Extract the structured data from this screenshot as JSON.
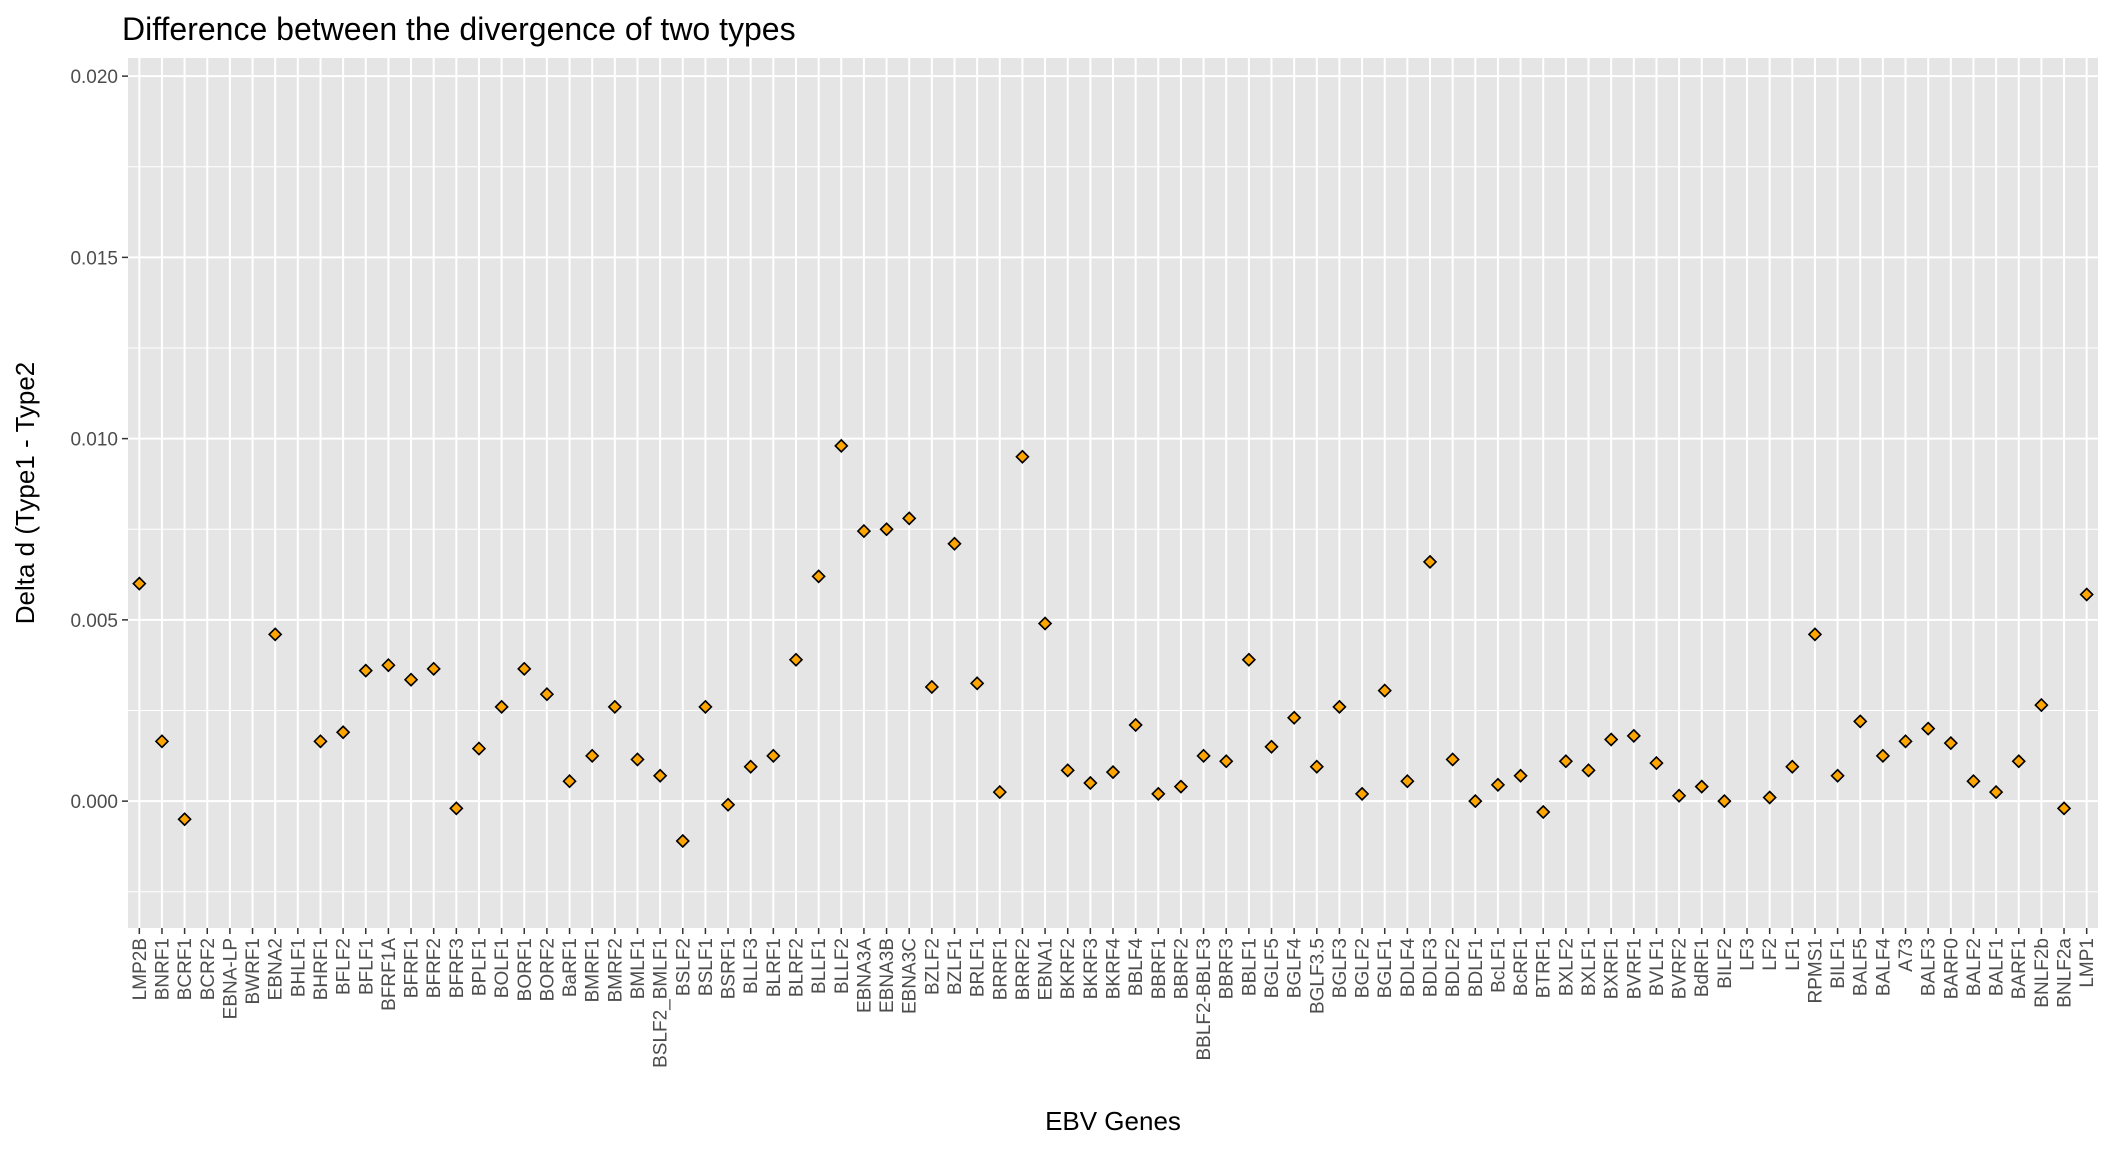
{
  "chart_data": {
    "type": "scatter",
    "title": "Difference between the divergence of two types",
    "xlabel": "EBV Genes",
    "ylabel": "Delta d (Type1 - Type2",
    "ylim": [
      -0.0035,
      0.0205
    ],
    "yticks": [
      0.0,
      0.005,
      0.01,
      0.015,
      0.02
    ],
    "ytick_labels": [
      "0.000",
      "0.005",
      "0.010",
      "0.015",
      "0.020"
    ],
    "grid": true,
    "marker": "diamond",
    "colors": {
      "panel": "#e5e5e5",
      "grid": "#ffffff",
      "point_fill": "#ffa500",
      "point_stroke": "#000000"
    },
    "categories": [
      "LMP2B",
      "BNRF1",
      "BCRF1",
      "BCRF2",
      "EBNA-LP",
      "BWRF1",
      "EBNA2",
      "BHLF1",
      "BHRF1",
      "BFLF2",
      "BFLF1",
      "BFRF1A",
      "BFRF1",
      "BFRF2",
      "BFRF3",
      "BPLF1",
      "BOLF1",
      "BORF1",
      "BORF2",
      "BaRF1",
      "BMRF1",
      "BMRF2",
      "BMLF1",
      "BSLF2_BMLF1",
      "BSLF2",
      "BSLF1",
      "BSRF1",
      "BLLF3",
      "BLRF1",
      "BLRF2",
      "BLLF1",
      "BLLF2",
      "EBNA3A",
      "EBNA3B",
      "EBNA3C",
      "BZLF2",
      "BZLF1",
      "BRLF1",
      "BRRF1",
      "BRRF2",
      "EBNA1",
      "BKRF2",
      "BKRF3",
      "BKRF4",
      "BBLF4",
      "BBRF1",
      "BBRF2",
      "BBLF2-BBLF3",
      "BBRF3",
      "BBLF1",
      "BGLF5",
      "BGLF4",
      "BGLF3.5",
      "BGLF3",
      "BGLF2",
      "BGLF1",
      "BDLF4",
      "BDLF3",
      "BDLF2",
      "BDLF1",
      "BcLF1",
      "BcRF1",
      "BTRF1",
      "BXLF2",
      "BXLF1",
      "BXRF1",
      "BVRF1",
      "BVLF1",
      "BVRF2",
      "BdRF1",
      "BILF2",
      "LF3",
      "LF2",
      "LF1",
      "RPMS1",
      "BILF1",
      "BALF5",
      "BALF4",
      "A73",
      "BALF3",
      "BARF0",
      "BALF2",
      "BALF1",
      "BARF1",
      "BNLF2b",
      "BNLF2a",
      "LMP1"
    ],
    "values": [
      0.006,
      0.00165,
      -0.0005,
      null,
      null,
      null,
      0.0046,
      null,
      0.00165,
      0.0019,
      0.0036,
      0.00375,
      0.00335,
      0.00365,
      -0.0002,
      0.00145,
      0.0026,
      0.00365,
      0.00295,
      0.00055,
      0.00125,
      0.0026,
      0.00115,
      0.0007,
      -0.0011,
      0.0026,
      -0.0001,
      0.00095,
      0.00125,
      0.0039,
      0.0062,
      0.0098,
      0.00745,
      0.0075,
      0.0078,
      0.00315,
      0.0071,
      0.00325,
      0.00025,
      0.0095,
      0.0049,
      0.00085,
      0.0005,
      0.0008,
      0.0021,
      0.0002,
      0.0004,
      0.00125,
      0.0011,
      0.0039,
      0.0015,
      0.0023,
      0.00095,
      0.0026,
      0.0002,
      0.00305,
      0.00055,
      0.0066,
      0.00115,
      0.0,
      0.00045,
      0.0007,
      -0.0003,
      0.0011,
      0.00085,
      0.0017,
      0.0018,
      0.00105,
      0.00015,
      0.0004,
      0.0,
      null,
      0.0001,
      0.00095,
      0.0046,
      0.0007,
      0.0022,
      0.00125,
      0.00165,
      0.002,
      0.0016,
      0.00055,
      0.00025,
      0.0011,
      0.00265,
      -0.0002,
      0.0057
    ]
  }
}
